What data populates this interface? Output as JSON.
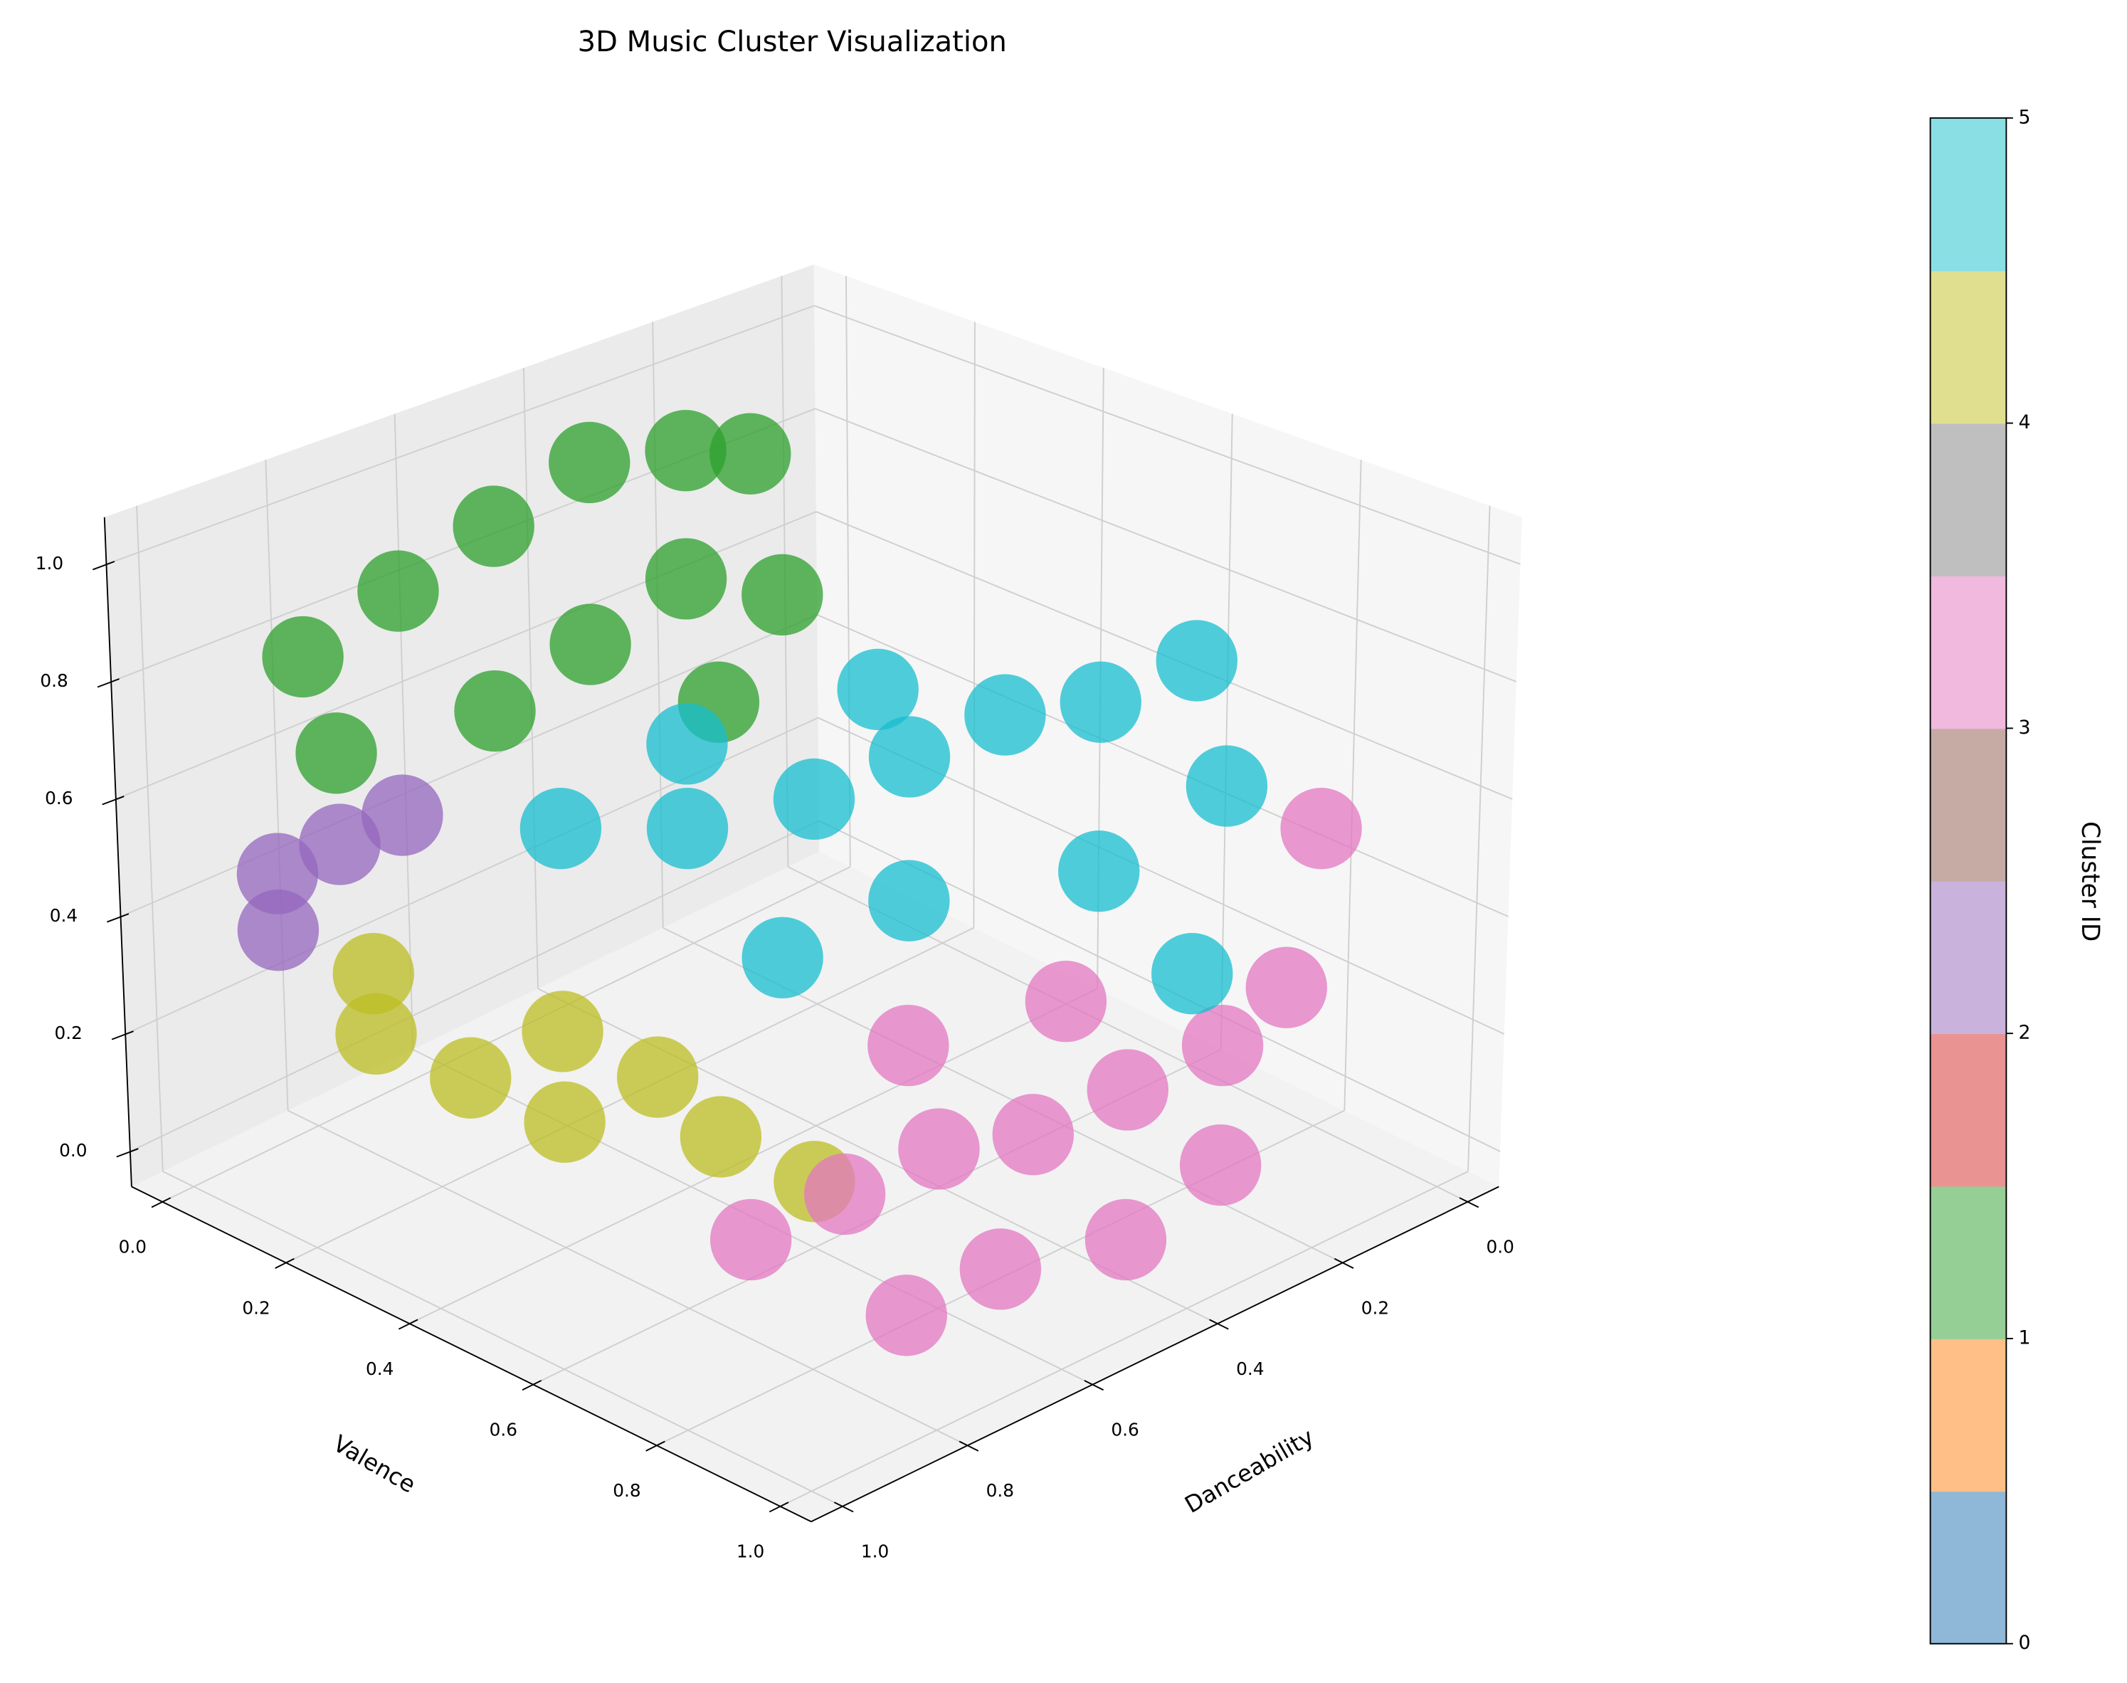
{
  "chart_data": {
    "type": "scatter3d",
    "title": "3D Music Cluster Visualization",
    "xlabel": "Danceability",
    "ylabel": "Valence",
    "xlim": [
      -0.05,
      1.05
    ],
    "ylim": [
      -0.05,
      1.05
    ],
    "zlim": [
      -0.06,
      1.08
    ],
    "xticks": [
      {
        "value": 0,
        "label": "0.0"
      },
      {
        "value": 0.2,
        "label": "0.2"
      },
      {
        "value": 0.4,
        "label": "0.4"
      },
      {
        "value": 0.6,
        "label": "0.6"
      },
      {
        "value": 0.8,
        "label": "0.8"
      },
      {
        "value": 1,
        "label": "1.0"
      }
    ],
    "yticks": [
      {
        "value": 0,
        "label": "0.0"
      },
      {
        "value": 0.2,
        "label": "0.2"
      },
      {
        "value": 0.4,
        "label": "0.4"
      },
      {
        "value": 0.6,
        "label": "0.6"
      },
      {
        "value": 0.8,
        "label": "0.8"
      },
      {
        "value": 1,
        "label": "1.0"
      }
    ],
    "zticks": [
      {
        "value": 0,
        "label": "0.0"
      },
      {
        "value": 0.2,
        "label": "0.2"
      },
      {
        "value": 0.4,
        "label": "0.4"
      },
      {
        "value": 0.6,
        "label": "0.6"
      },
      {
        "value": 0.8,
        "label": "0.8"
      },
      {
        "value": 1,
        "label": "1.0"
      }
    ],
    "grid": true,
    "series": [
      {
        "color": "#9467bd",
        "x": [
          0.9,
          0.85,
          0.95,
          0.8
        ],
        "y": [
          0.05,
          0.1,
          0.1,
          0.15
        ],
        "z": [
          0.45,
          0.5,
          0.4,
          0.55
        ]
      },
      {
        "color": "#bcbd22",
        "x": [
          0.85,
          0.8,
          0.75,
          0.9,
          0.7,
          0.65,
          0.8,
          0.6
        ],
        "y": [
          0.15,
          0.25,
          0.35,
          0.2,
          0.45,
          0.5,
          0.4,
          0.6
        ],
        "z": [
          0.2,
          0.15,
          0.1,
          0.35,
          0.2,
          0.1,
          0.3,
          0.05
        ]
      },
      {
        "color": "#2ca02c",
        "x": [
          0.85,
          0.7,
          0.55,
          0.4,
          0.3,
          0.2,
          0.75,
          0.6,
          0.45,
          0.35,
          0.9,
          0.5
        ],
        "y": [
          0.05,
          0.05,
          0.05,
          0.05,
          0.1,
          0.1,
          0.25,
          0.25,
          0.25,
          0.3,
          0.15,
          0.35
        ],
        "z": [
          0.8,
          0.85,
          0.9,
          0.95,
          0.95,
          0.9,
          0.75,
          0.8,
          0.85,
          0.8,
          0.7,
          0.7
        ]
      },
      {
        "color": "#e377c2",
        "x": [
          0.8,
          0.7,
          0.6,
          0.5,
          0.4,
          0.3,
          0.2,
          0.65,
          0.5,
          0.35,
          0.55,
          0.4,
          0.75,
          0.1
        ],
        "y": [
          0.7,
          0.75,
          0.8,
          0.85,
          0.9,
          0.95,
          0.95,
          0.95,
          1.0,
          1.0,
          0.7,
          0.8,
          0.9,
          0.9
        ],
        "z": [
          0.1,
          0.15,
          0.2,
          0.2,
          0.25,
          0.3,
          0.35,
          0.1,
          0.1,
          0.15,
          0.3,
          0.35,
          0.05,
          0.55
        ]
      },
      {
        "color": "#17becf",
        "x": [
          0.7,
          0.6,
          0.5,
          0.4,
          0.3,
          0.2,
          0.1,
          0.6,
          0.45,
          0.3,
          0.15,
          0.55,
          0.35,
          0.25
        ],
        "y": [
          0.3,
          0.4,
          0.5,
          0.55,
          0.6,
          0.65,
          0.7,
          0.55,
          0.6,
          0.75,
          0.8,
          0.35,
          0.45,
          0.85
        ],
        "z": [
          0.55,
          0.55,
          0.6,
          0.65,
          0.7,
          0.7,
          0.75,
          0.4,
          0.45,
          0.5,
          0.6,
          0.65,
          0.7,
          0.35
        ]
      }
    ],
    "colorbar": {
      "label": "Cluster ID",
      "lim": [
        0,
        5
      ],
      "ticks": [
        0,
        1,
        2,
        3,
        4,
        5
      ],
      "colors": [
        "#8fb8d8",
        "#ffbf86",
        "#95cf95",
        "#e99393",
        "#c9b3dd",
        "#c6aba5",
        "#f0b9dd",
        "#bfbfbf",
        "#dfdf8f",
        "#8adfe5"
      ]
    }
  }
}
